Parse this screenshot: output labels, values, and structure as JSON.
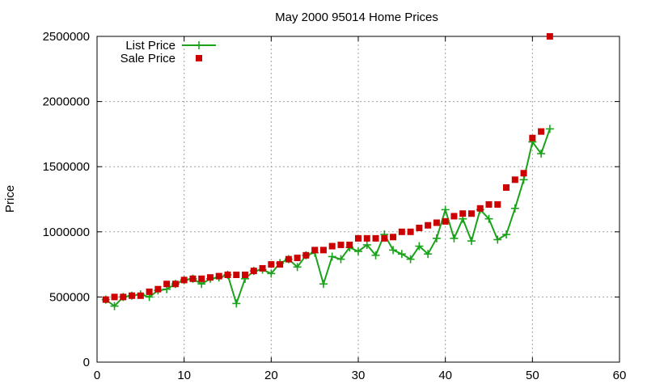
{
  "chart_data": {
    "type": "line",
    "title": "May 2000 95014 Home Prices",
    "xlabel": "",
    "ylabel": "Price",
    "xlim": [
      0,
      60
    ],
    "ylim": [
      0,
      2500000
    ],
    "x_ticks": [
      0,
      10,
      20,
      30,
      40,
      50,
      60
    ],
    "y_ticks": [
      0,
      500000,
      1000000,
      1500000,
      2000000,
      2500000
    ],
    "grid": true,
    "legend_position": "top-left",
    "series": [
      {
        "name": "List Price",
        "style": "line-with-plus-markers",
        "color": "#1aa31a",
        "x": [
          1,
          2,
          3,
          4,
          5,
          6,
          7,
          8,
          9,
          10,
          11,
          12,
          13,
          14,
          15,
          16,
          17,
          18,
          19,
          20,
          21,
          22,
          23,
          24,
          25,
          26,
          27,
          28,
          29,
          30,
          31,
          32,
          33,
          34,
          35,
          36,
          37,
          38,
          39,
          40,
          41,
          42,
          43,
          44,
          45,
          46,
          47,
          48,
          49,
          50,
          51,
          52
        ],
        "y": [
          480000,
          430000,
          500000,
          510000,
          520000,
          500000,
          550000,
          560000,
          600000,
          630000,
          640000,
          600000,
          640000,
          650000,
          670000,
          450000,
          640000,
          700000,
          710000,
          680000,
          760000,
          790000,
          730000,
          820000,
          840000,
          600000,
          810000,
          790000,
          880000,
          850000,
          900000,
          820000,
          980000,
          860000,
          830000,
          790000,
          890000,
          830000,
          950000,
          1170000,
          950000,
          1100000,
          930000,
          1170000,
          1100000,
          940000,
          980000,
          1180000,
          1400000,
          1690000,
          1600000,
          1790000
        ]
      },
      {
        "name": "Sale Price",
        "style": "square-markers",
        "color": "#cc0000",
        "x": [
          1,
          2,
          3,
          4,
          5,
          6,
          7,
          8,
          9,
          10,
          11,
          12,
          13,
          14,
          15,
          16,
          17,
          18,
          19,
          20,
          21,
          22,
          23,
          24,
          25,
          26,
          27,
          28,
          29,
          30,
          31,
          32,
          33,
          34,
          35,
          36,
          37,
          38,
          39,
          40,
          41,
          42,
          43,
          44,
          45,
          46,
          47,
          48,
          49,
          50,
          51,
          52
        ],
        "y": [
          480000,
          500000,
          500000,
          510000,
          510000,
          540000,
          560000,
          600000,
          600000,
          630000,
          640000,
          640000,
          650000,
          660000,
          670000,
          670000,
          670000,
          700000,
          720000,
          750000,
          750000,
          790000,
          800000,
          820000,
          860000,
          860000,
          890000,
          900000,
          900000,
          950000,
          950000,
          950000,
          950000,
          960000,
          1000000,
          1000000,
          1030000,
          1050000,
          1070000,
          1080000,
          1120000,
          1140000,
          1140000,
          1180000,
          1210000,
          1210000,
          1340000,
          1400000,
          1450000,
          1720000,
          1770000,
          2500000
        ]
      }
    ]
  }
}
